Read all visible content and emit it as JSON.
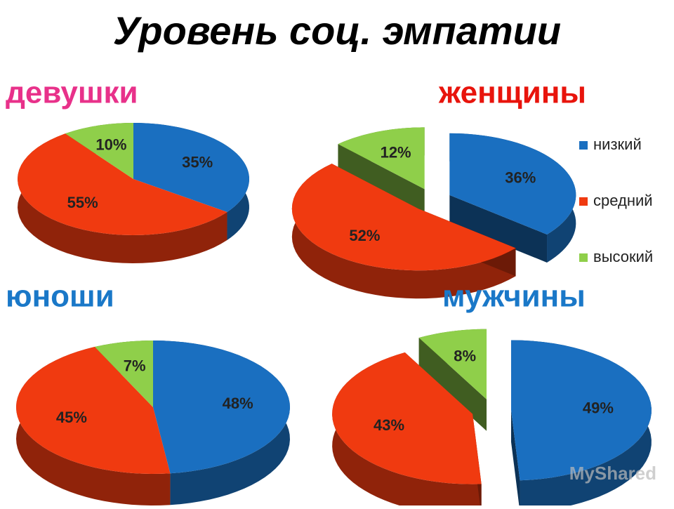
{
  "title": "Уровень соц. эмпатии",
  "watermark": "MyShared",
  "chart_data": [
    {
      "type": "pie",
      "title": "девушки",
      "title_color": "#e8318a",
      "categories": [
        "низкий",
        "средний",
        "высокий"
      ],
      "colors": [
        "#1a6fc0",
        "#f03a10",
        "#8fcf4a"
      ],
      "values": [
        35,
        55,
        10
      ],
      "value_labels": [
        "35%",
        "55%",
        "10%"
      ],
      "exploded": false,
      "legend": false
    },
    {
      "type": "pie",
      "title": "женщины",
      "title_color": "#e8140c",
      "categories": [
        "низкий",
        "средний",
        "высокий"
      ],
      "colors": [
        "#1a6fc0",
        "#f03a10",
        "#8fcf4a"
      ],
      "values": [
        36,
        52,
        12
      ],
      "value_labels": [
        "36%",
        "52%",
        "12%"
      ],
      "exploded": true,
      "legend": true
    },
    {
      "type": "pie",
      "title": "юноши",
      "title_color": "#1a78c8",
      "categories": [
        "низкий",
        "средний",
        "высокий"
      ],
      "colors": [
        "#1a6fc0",
        "#f03a10",
        "#8fcf4a"
      ],
      "values": [
        48,
        45,
        7
      ],
      "value_labels": [
        "48%",
        "45%",
        "7%"
      ],
      "exploded": false,
      "legend": false
    },
    {
      "type": "pie",
      "title": "мужчины",
      "title_color": "#1a78c8",
      "categories": [
        "низкий",
        "средний",
        "высокий"
      ],
      "colors": [
        "#1a6fc0",
        "#f03a10",
        "#8fcf4a"
      ],
      "values": [
        49,
        43,
        8
      ],
      "value_labels": [
        "49%",
        "43%",
        "8%"
      ],
      "exploded": true,
      "legend": false
    }
  ]
}
